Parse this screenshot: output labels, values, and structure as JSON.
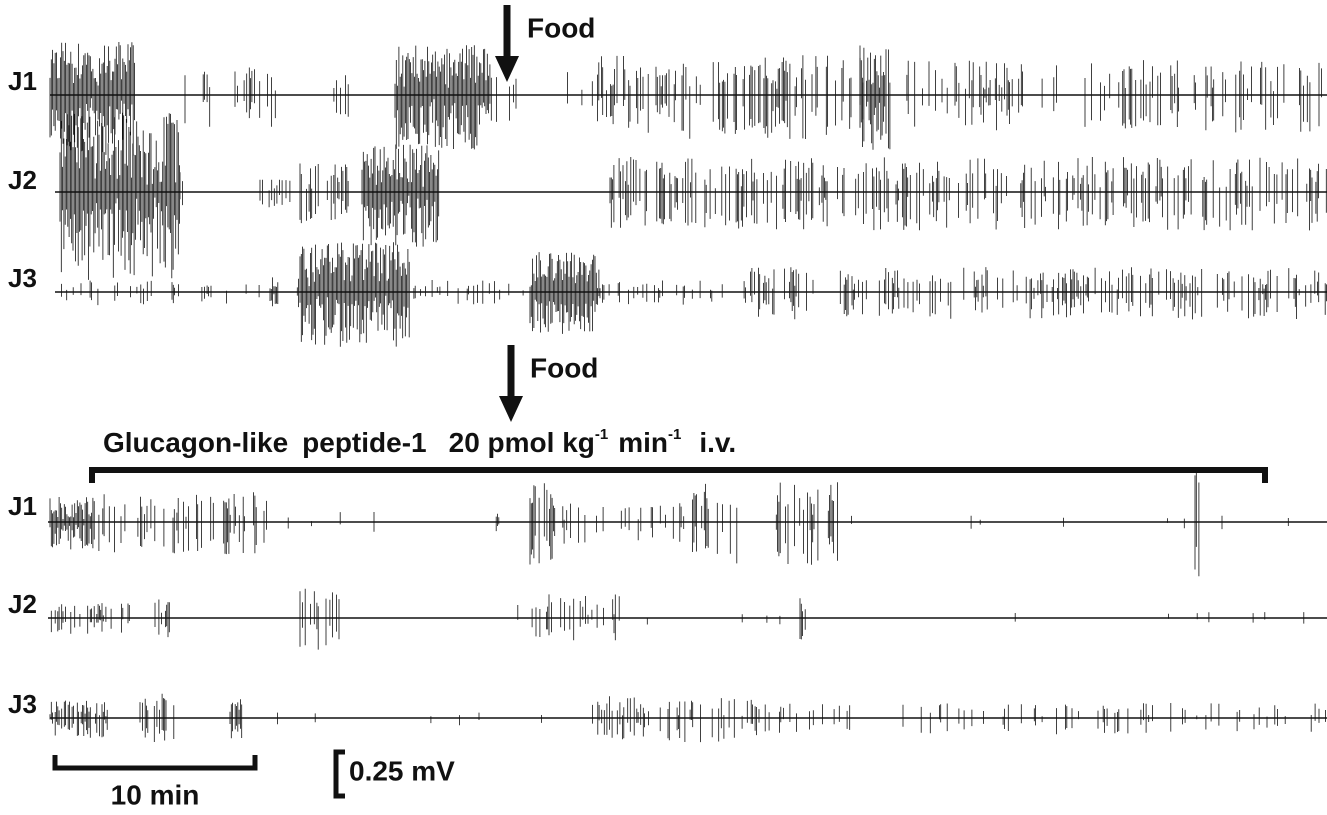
{
  "panels": [
    {
      "food_label": "Food",
      "traces": [
        "J1",
        "J2",
        "J3"
      ]
    },
    {
      "food_label": "Food",
      "treatment": {
        "name_1": "Glucagon-like",
        "name_2": "peptide-1",
        "dose": "20 pmol kg",
        "dose_exp": "-1",
        "rate": "min",
        "rate_exp": "-1",
        "route": "i.v."
      },
      "traces": [
        "J1",
        "J2",
        "J3"
      ]
    }
  ],
  "scale_bars": {
    "time": "10 min",
    "amplitude": "0.25 mV"
  }
}
